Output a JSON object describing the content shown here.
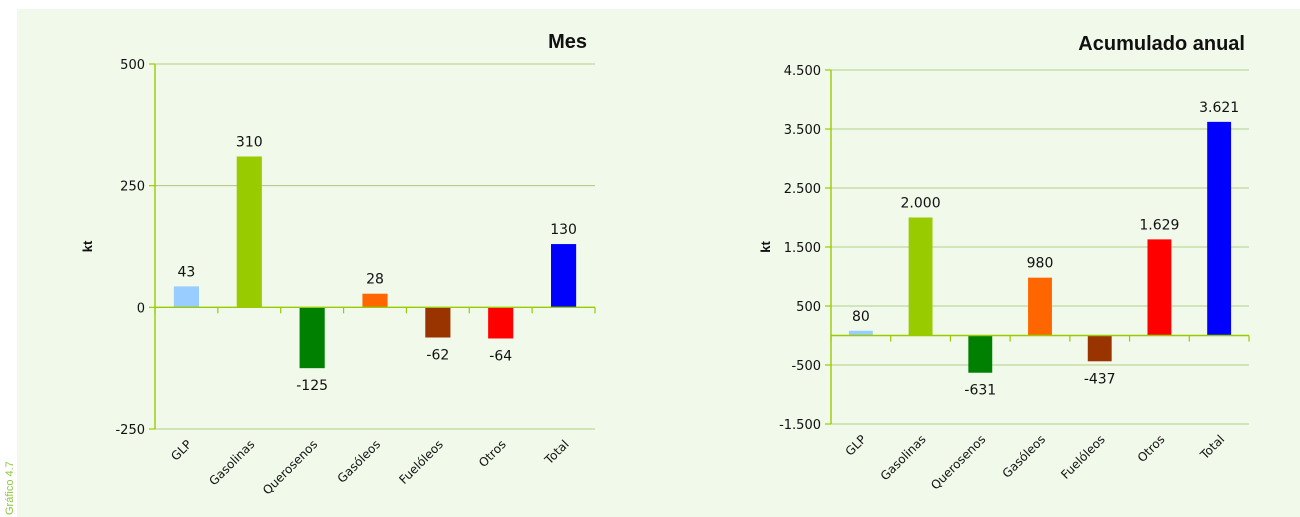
{
  "side_label": "Gráfico 4.7",
  "chart_data": [
    {
      "type": "bar",
      "title": "Mes",
      "ylabel": "kt",
      "categories": [
        "GLP",
        "Gasolinas",
        "Querosenos",
        "Gasóleos",
        "Fuelóleos",
        "Otros",
        "Total"
      ],
      "values": [
        43,
        310,
        -125,
        28,
        -62,
        -64,
        130
      ],
      "value_labels": [
        "43",
        "310",
        "-125",
        "28",
        "-62",
        "-64",
        "130"
      ],
      "colors": [
        "#99ccff",
        "#99cc00",
        "#008000",
        "#ff6600",
        "#993300",
        "#ff0000",
        "#0000ff"
      ],
      "ylim": [
        -250,
        500
      ],
      "yticks": [
        -250,
        0,
        250,
        500
      ],
      "ytick_labels": [
        "-250",
        "0",
        "250",
        "500"
      ],
      "grid": true,
      "axis_color": "#99cc00"
    },
    {
      "type": "bar",
      "title": "Acumulado anual",
      "ylabel": "kt",
      "categories": [
        "GLP",
        "Gasolinas",
        "Querosenos",
        "Gasóleos",
        "Fuelóleos",
        "Otros",
        "Total"
      ],
      "values": [
        80,
        2000,
        -631,
        980,
        -437,
        1629,
        3621
      ],
      "value_labels": [
        "80",
        "2.000",
        "-631",
        "980",
        "-437",
        "1.629",
        "3.621"
      ],
      "colors": [
        "#99ccff",
        "#99cc00",
        "#008000",
        "#ff6600",
        "#993300",
        "#ff0000",
        "#0000ff"
      ],
      "ylim": [
        -1500,
        4500
      ],
      "yticks": [
        -1500,
        -500,
        500,
        1500,
        2500,
        3500,
        4500
      ],
      "ytick_labels": [
        "-1.500",
        "-500",
        "500",
        "1.500",
        "2.500",
        "3.500",
        "4.500"
      ],
      "grid": true,
      "axis_color": "#99cc00"
    }
  ]
}
